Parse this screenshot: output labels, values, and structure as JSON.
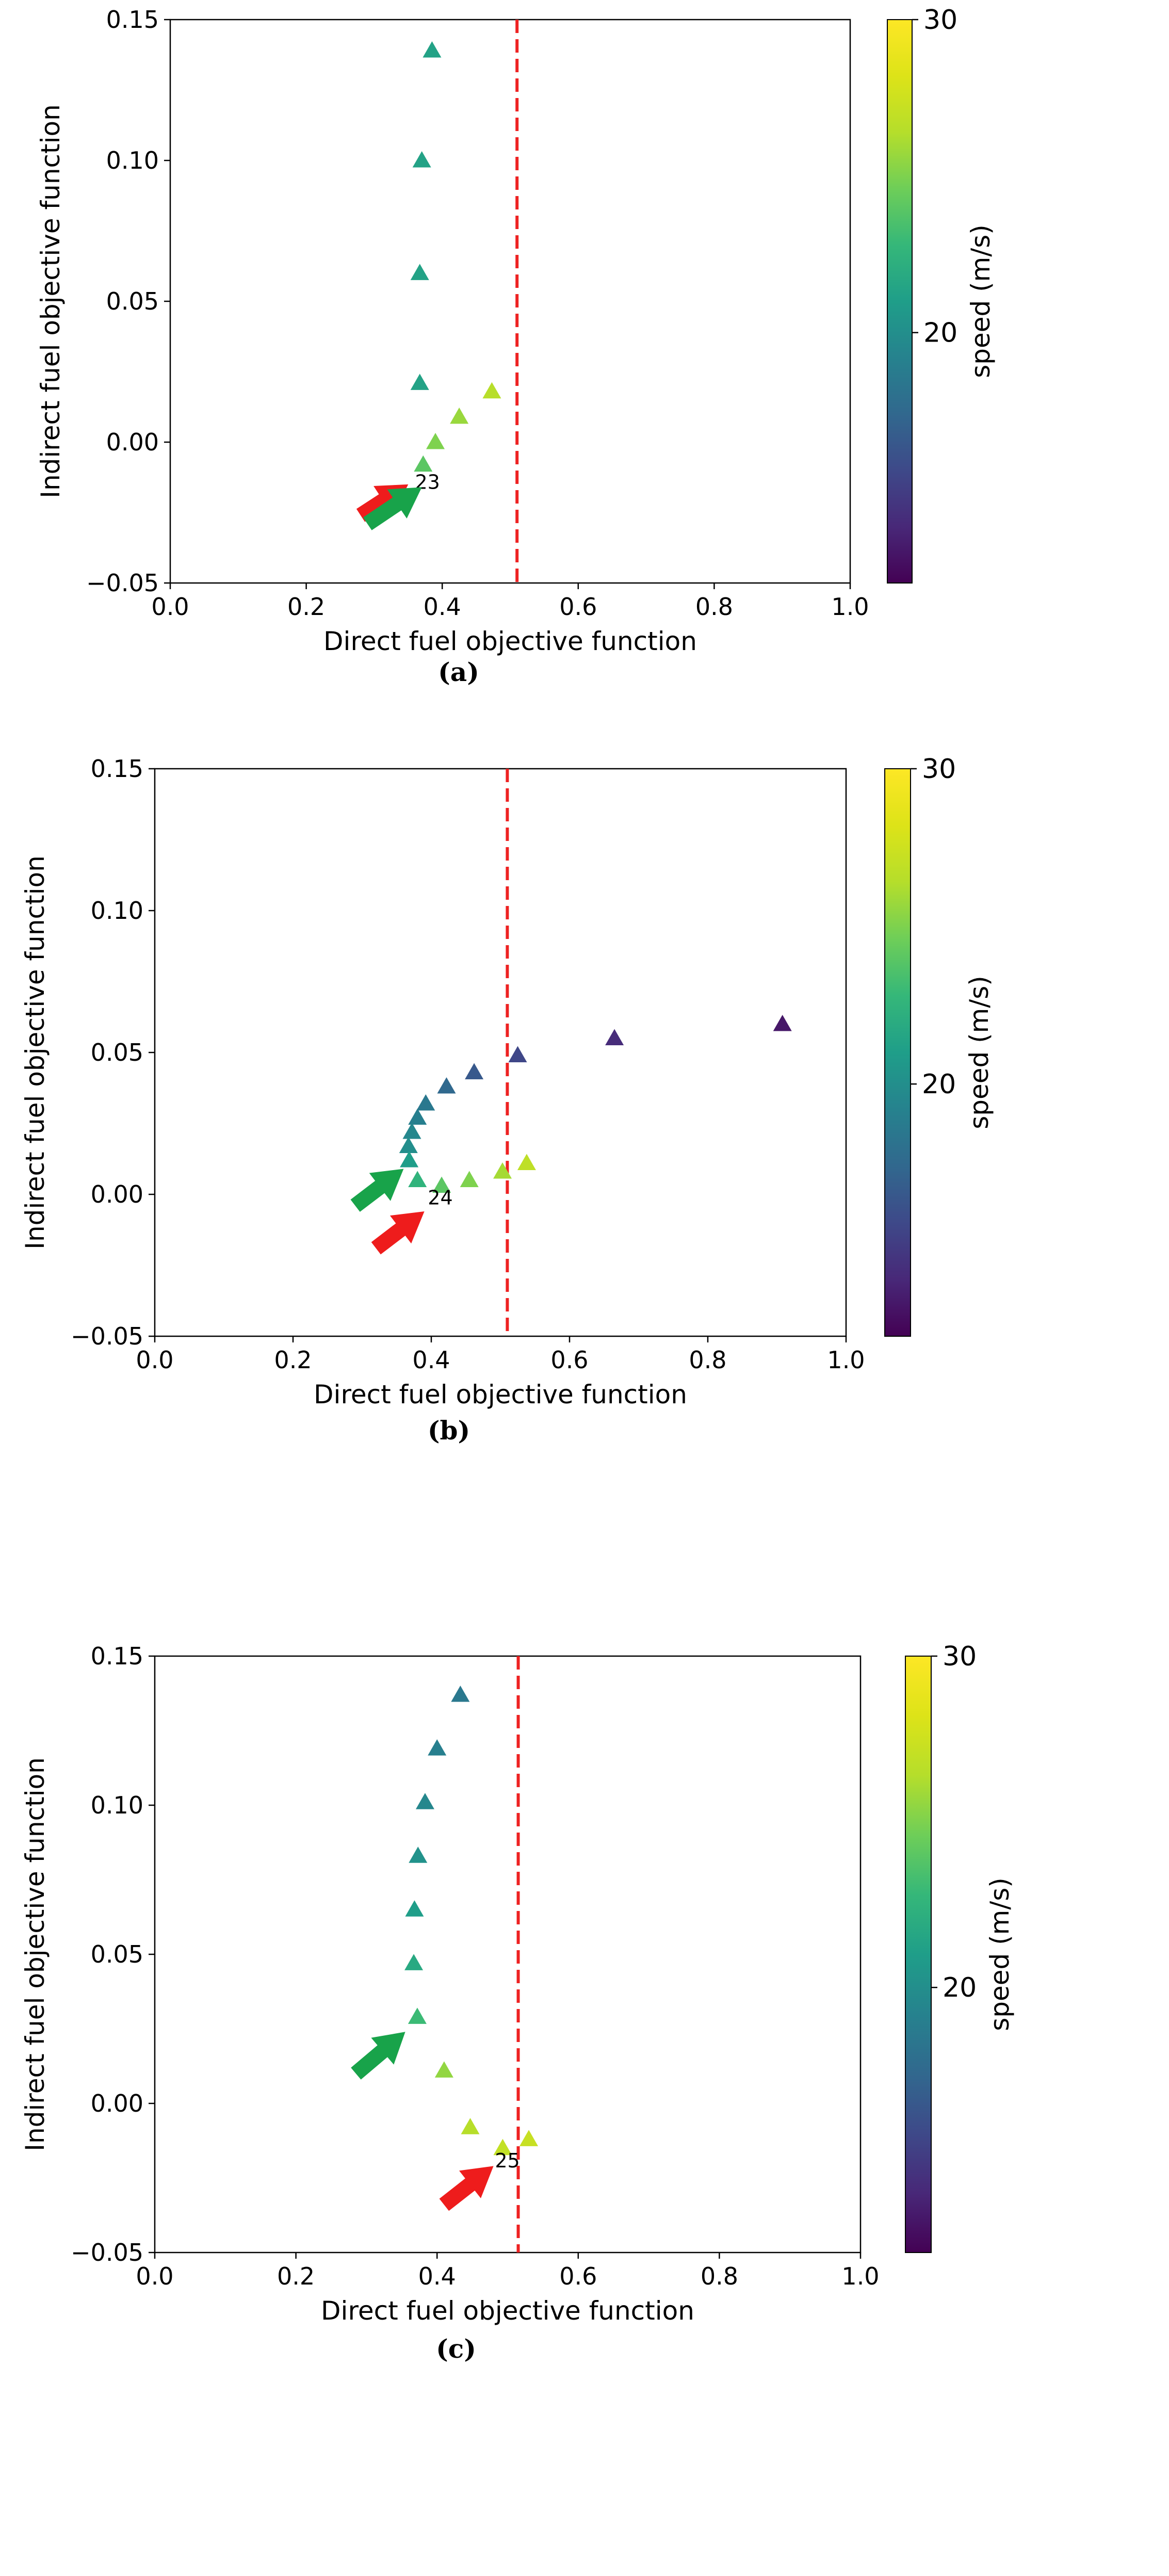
{
  "chart_data": [
    {
      "type": "scatter",
      "caption": "(a)",
      "xlabel": "Direct fuel objective function",
      "ylabel": "Indirect fuel objective function",
      "xlim": [
        0.0,
        1.0
      ],
      "ylim": [
        -0.05,
        0.15
      ],
      "xticks": [
        "0.0",
        "0.2",
        "0.4",
        "0.6",
        "0.8",
        "1.0"
      ],
      "yticks": [
        "−0.05",
        "0.00",
        "0.05",
        "0.10",
        "0.15"
      ],
      "threshold_x": 0.51,
      "colorbar": {
        "label": "speed (m/s)",
        "ticks": [
          "20",
          "30"
        ],
        "range": [
          12,
          30
        ]
      },
      "points": [
        {
          "x": 0.385,
          "y": 0.139,
          "speed": 21.3
        },
        {
          "x": 0.37,
          "y": 0.1,
          "speed": 21.3
        },
        {
          "x": 0.367,
          "y": 0.06,
          "speed": 21.3
        },
        {
          "x": 0.367,
          "y": 0.021,
          "speed": 21.3
        },
        {
          "x": 0.473,
          "y": 0.018,
          "speed": 26.5
        },
        {
          "x": 0.425,
          "y": 0.009,
          "speed": 25.7
        },
        {
          "x": 0.39,
          "y": 0.0,
          "speed": 25.0
        },
        {
          "x": 0.372,
          "y": -0.008,
          "speed": 24.0
        }
      ],
      "annotation": {
        "text": "23",
        "x": 0.36,
        "y": -0.014
      },
      "arrows": [
        {
          "color": "#ee1c1c",
          "from": [
            0.28,
            -0.026
          ],
          "to": [
            0.35,
            -0.015
          ]
        },
        {
          "color": "#18a34a",
          "from": [
            0.29,
            -0.029
          ],
          "to": [
            0.37,
            -0.016
          ]
        }
      ]
    },
    {
      "type": "scatter",
      "caption": "(b)",
      "xlabel": "Direct fuel objective function",
      "ylabel": "Indirect fuel objective function",
      "xlim": [
        0.0,
        1.0
      ],
      "ylim": [
        -0.05,
        0.15
      ],
      "xticks": [
        "0.0",
        "0.2",
        "0.4",
        "0.6",
        "0.8",
        "1.0"
      ],
      "yticks": [
        "−0.05",
        "0.00",
        "0.05",
        "0.10",
        "0.15"
      ],
      "threshold_x": 0.51,
      "colorbar": {
        "label": "speed (m/s)",
        "ticks": [
          "20",
          "30"
        ],
        "range": [
          12,
          30
        ]
      },
      "points": [
        {
          "x": 0.908,
          "y": 0.06,
          "speed": 13.0
        },
        {
          "x": 0.665,
          "y": 0.055,
          "speed": 14.0
        },
        {
          "x": 0.525,
          "y": 0.049,
          "speed": 15.5
        },
        {
          "x": 0.462,
          "y": 0.043,
          "speed": 16.5
        },
        {
          "x": 0.422,
          "y": 0.038,
          "speed": 17.5
        },
        {
          "x": 0.392,
          "y": 0.032,
          "speed": 18.5
        },
        {
          "x": 0.38,
          "y": 0.027,
          "speed": 19.0
        },
        {
          "x": 0.372,
          "y": 0.022,
          "speed": 19.5
        },
        {
          "x": 0.367,
          "y": 0.017,
          "speed": 20.0
        },
        {
          "x": 0.368,
          "y": 0.012,
          "speed": 21.0
        },
        {
          "x": 0.38,
          "y": 0.005,
          "speed": 22.5
        },
        {
          "x": 0.415,
          "y": 0.003,
          "speed": 24.0
        },
        {
          "x": 0.455,
          "y": 0.005,
          "speed": 25.0
        },
        {
          "x": 0.503,
          "y": 0.008,
          "speed": 26.0
        },
        {
          "x": 0.538,
          "y": 0.011,
          "speed": 26.8
        }
      ],
      "annotation": {
        "text": "24",
        "x": 0.395,
        "y": -0.001
      },
      "arrows": [
        {
          "color": "#18a34a",
          "from": [
            0.29,
            -0.004
          ],
          "to": [
            0.36,
            0.009
          ]
        },
        {
          "color": "#ee1c1c",
          "from": [
            0.32,
            -0.019
          ],
          "to": [
            0.39,
            -0.006
          ]
        }
      ]
    },
    {
      "type": "scatter",
      "caption": "(c)",
      "xlabel": "Direct fuel objective function",
      "ylabel": "Indirect fuel objective function",
      "xlim": [
        0.0,
        1.0
      ],
      "ylim": [
        -0.05,
        0.15
      ],
      "xticks": [
        "0.0",
        "0.2",
        "0.4",
        "0.6",
        "0.8",
        "1.0"
      ],
      "yticks": [
        "−0.05",
        "0.00",
        "0.05",
        "0.10",
        "0.15"
      ],
      "threshold_x": 0.515,
      "colorbar": {
        "label": "speed (m/s)",
        "ticks": [
          "20",
          "30"
        ],
        "range": [
          12,
          30
        ]
      },
      "points": [
        {
          "x": 0.433,
          "y": 0.137,
          "speed": 18.5
        },
        {
          "x": 0.4,
          "y": 0.119,
          "speed": 19.0
        },
        {
          "x": 0.383,
          "y": 0.101,
          "speed": 19.5
        },
        {
          "x": 0.373,
          "y": 0.083,
          "speed": 20.2
        },
        {
          "x": 0.368,
          "y": 0.065,
          "speed": 21.0
        },
        {
          "x": 0.367,
          "y": 0.047,
          "speed": 21.8
        },
        {
          "x": 0.372,
          "y": 0.029,
          "speed": 23.0
        },
        {
          "x": 0.41,
          "y": 0.011,
          "speed": 25.5
        },
        {
          "x": 0.447,
          "y": -0.008,
          "speed": 26.5
        },
        {
          "x": 0.493,
          "y": -0.015,
          "speed": 27.0
        },
        {
          "x": 0.53,
          "y": -0.012,
          "speed": 27.2
        }
      ],
      "annotation": {
        "text": "25",
        "x": 0.482,
        "y": -0.019
      },
      "arrows": [
        {
          "color": "#18a34a",
          "from": [
            0.285,
            0.01
          ],
          "to": [
            0.355,
            0.024
          ]
        },
        {
          "color": "#ee1c1c",
          "from": [
            0.41,
            -0.034
          ],
          "to": [
            0.48,
            -0.021
          ]
        }
      ]
    }
  ]
}
